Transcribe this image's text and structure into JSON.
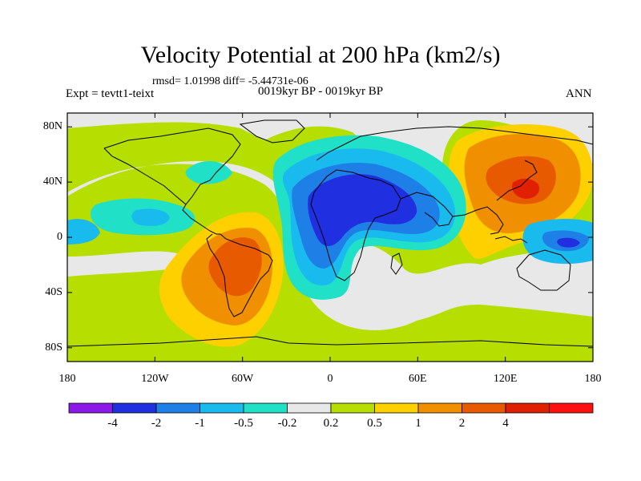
{
  "title": "Velocity Potential at 200 hPa (km2/s)",
  "stats": {
    "rmsd": "rmsd= 1.01998 diff= -5.44731e-06"
  },
  "experiment": "Expt = tevtt1-teixt",
  "period": "0019kyr BP - 0019kyr BP",
  "season": "ANN",
  "map": {
    "projection": "cylindrical-equidistant",
    "lon_range": [
      -180,
      180
    ],
    "lat_range": [
      -90,
      90
    ],
    "x_ticks": [
      {
        "lon": -180,
        "label": "180"
      },
      {
        "lon": -120,
        "label": "120W"
      },
      {
        "lon": -60,
        "label": "60W"
      },
      {
        "lon": 0,
        "label": "0"
      },
      {
        "lon": 60,
        "label": "60E"
      },
      {
        "lon": 120,
        "label": "120E"
      },
      {
        "lon": 180,
        "label": "180"
      }
    ],
    "y_ticks": [
      {
        "lat": 80,
        "label": "80N"
      },
      {
        "lat": 40,
        "label": "40N"
      },
      {
        "lat": 0,
        "label": "0"
      },
      {
        "lat": -40,
        "label": "40S"
      },
      {
        "lat": -80,
        "label": "80S"
      }
    ],
    "regions": [
      {
        "id": "africa-min",
        "lon": 30,
        "lat": 10,
        "value": -3
      },
      {
        "id": "atlantic-negative",
        "lon": -20,
        "lat": 0,
        "value": -1
      },
      {
        "id": "pacific-negative",
        "lon": 160,
        "lat": -5,
        "value": -2
      },
      {
        "id": "east-pacific-negative",
        "lon": -140,
        "lat": 10,
        "value": -0.7
      },
      {
        "id": "south-america-max",
        "lon": -60,
        "lat": -15,
        "value": 3
      },
      {
        "id": "asia-max",
        "lon": 120,
        "lat": 45,
        "value": 1.5
      },
      {
        "id": "japan-max",
        "lon": 140,
        "lat": 35,
        "value": 2.5
      }
    ]
  },
  "colorbar": {
    "colors": [
      "#8b1ae8",
      "#2030e0",
      "#1e7fe6",
      "#19bbee",
      "#20e0c8",
      "#e8e8e8",
      "#b6de00",
      "#ffd000",
      "#f09000",
      "#e85a00",
      "#e02000",
      "#ff1010"
    ],
    "labels": [
      "-4",
      "-2",
      "-1",
      "-0.5",
      "-0.2",
      "0.2",
      "0.5",
      "1",
      "2",
      "4"
    ]
  }
}
